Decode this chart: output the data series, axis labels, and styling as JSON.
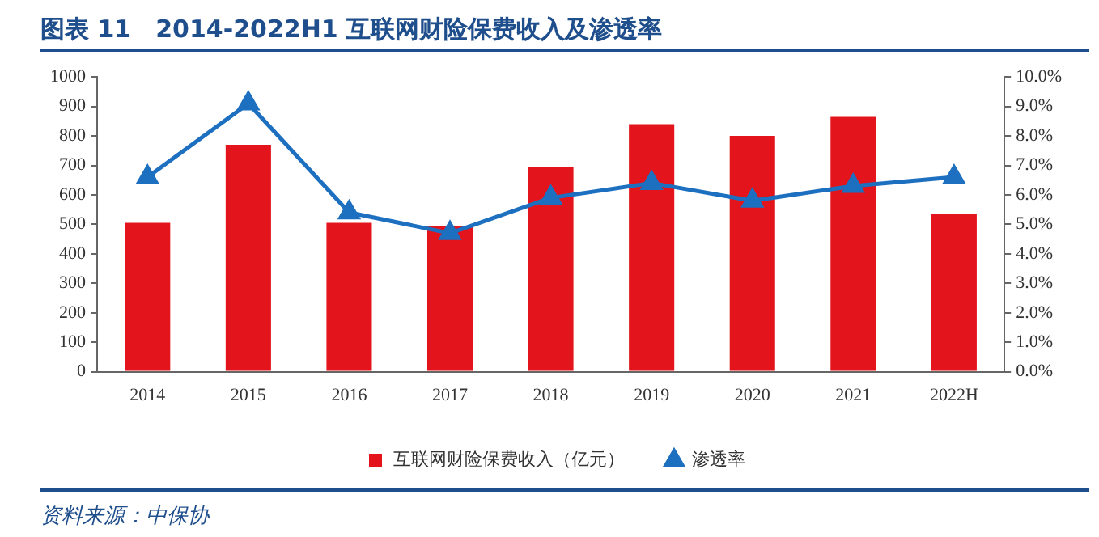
{
  "chart_data": {
    "type": "bar",
    "title": "图表 11　2014-2022H1 互联网财险保费收入及渗透率",
    "categories": [
      "2014",
      "2015",
      "2016",
      "2017",
      "2018",
      "2019",
      "2020",
      "2021",
      "2022H"
    ],
    "series": [
      {
        "name": "互联网财险保费收入（亿元）",
        "color": "#e3141c",
        "values": [
          505,
          770,
          505,
          495,
          695,
          840,
          800,
          865,
          535
        ]
      },
      {
        "name": "渗透率",
        "type": "line",
        "axis": "y2",
        "color": "#1d6fc0",
        "values": [
          6.6,
          9.1,
          5.4,
          4.7,
          5.9,
          6.4,
          5.8,
          6.3,
          6.6
        ]
      }
    ],
    "ylim": [
      0,
      1000
    ],
    "yticks": [
      0,
      100,
      200,
      300,
      400,
      500,
      600,
      700,
      800,
      900,
      1000
    ],
    "y2lim": [
      0,
      10
    ],
    "y2ticks": [
      {
        "value": 0,
        "label": "0.0%"
      },
      {
        "value": 1,
        "label": "1.0%"
      },
      {
        "value": 2,
        "label": "2.0%"
      },
      {
        "value": 3,
        "label": "3.0%"
      },
      {
        "value": 4,
        "label": "4.0%"
      },
      {
        "value": 5,
        "label": "5.0%"
      },
      {
        "value": 6,
        "label": "6.0%"
      },
      {
        "value": 7,
        "label": "7.0%"
      },
      {
        "value": 8,
        "label": "8.0%"
      },
      {
        "value": 9,
        "label": "9.0%"
      },
      {
        "value": 10,
        "label": "10.0%"
      }
    ],
    "marker": "triangle",
    "grid": false,
    "legend": "bottom",
    "annotations": [
      "资料来源：中保协"
    ]
  }
}
